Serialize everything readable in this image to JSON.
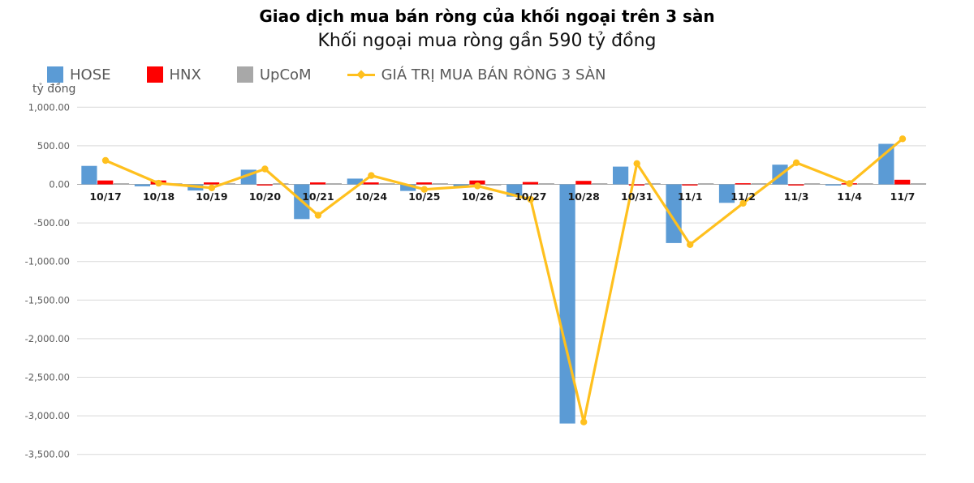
{
  "header": {
    "title": "Giao dịch mua bán ròng của khối ngoại trên 3 sàn",
    "subtitle": "Khối ngoại mua ròng gần 590 tỷ đồng"
  },
  "colors": {
    "hose_blue": "#5B9BD5",
    "hnx_red": "#FE0000",
    "upcom_gray": "#A8A8A8",
    "line_yellow": "#FFC01E",
    "gridline": "#D9D9D9",
    "axis_line": "#ABABAB",
    "tick_text": "#595959",
    "date_text": "#1a1a1a"
  },
  "chart_data": {
    "type": "combo-bar-line",
    "title": "Giao dịch mua bán ròng của khối ngoại trên 3 sàn",
    "subtitle": "Khối ngoại mua ròng gần 590 tỷ đồng",
    "xlabel": "",
    "ylabel": "tỷ đồng",
    "grid": true,
    "legend_position": "top-left",
    "categories": [
      "10/17",
      "10/18",
      "10/19",
      "10/20",
      "10/21",
      "10/24",
      "10/25",
      "10/26",
      "10/27",
      "10/28",
      "10/31",
      "11/1",
      "11/2",
      "11/3",
      "11/4",
      "11/7"
    ],
    "series": [
      {
        "name": "HOSE",
        "type": "bar",
        "color": "#5B9BD5",
        "values": [
          240,
          -25,
          -80,
          190,
          -450,
          75,
          -85,
          -40,
          -160,
          -3100,
          230,
          -760,
          -240,
          255,
          -15,
          525
        ]
      },
      {
        "name": "HNX",
        "type": "bar",
        "color": "#FE0000",
        "values": [
          50,
          50,
          25,
          -15,
          25,
          25,
          25,
          50,
          30,
          45,
          -15,
          -10,
          15,
          -10,
          10,
          60
        ]
      },
      {
        "name": "UpCoM",
        "type": "bar",
        "color": "#A8A8A8",
        "values": [
          10,
          5,
          8,
          10,
          8,
          12,
          8,
          -8,
          10,
          12,
          10,
          5,
          8,
          10,
          5,
          8
        ]
      },
      {
        "name": "GIÁ TRỊ MUA BÁN RÒNG 3 SÀN",
        "type": "line",
        "color": "#FFC01E",
        "values": [
          310,
          15,
          -45,
          200,
          -400,
          115,
          -65,
          -20,
          -195,
          -3080,
          270,
          -780,
          -245,
          280,
          10,
          590
        ]
      }
    ],
    "y_axis": {
      "min": -3500,
      "max": 1000,
      "step": 500,
      "tick_values": [
        1000,
        500,
        0,
        -500,
        -1000,
        -1500,
        -2000,
        -2500,
        -3000,
        -3500
      ],
      "tick_labels": [
        "1,000.00",
        "500.00",
        "0.00",
        "-500.00",
        "-1,000.00",
        "-1,500.00",
        "-2,000.00",
        "-2,500.00",
        "-3,000.00",
        "-3,500.00"
      ]
    }
  }
}
